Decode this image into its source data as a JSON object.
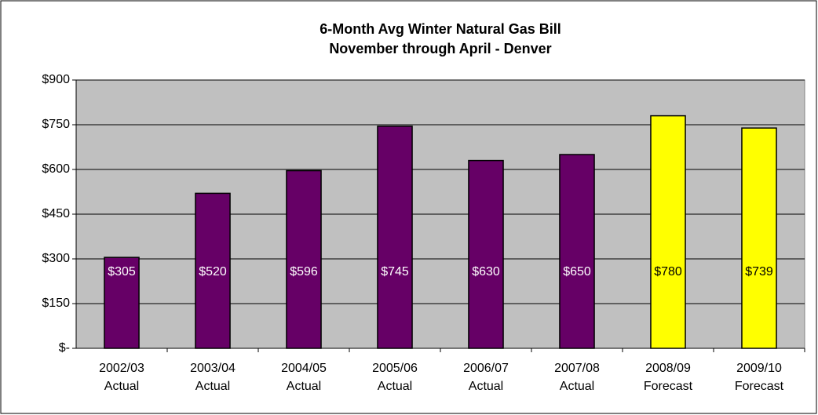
{
  "chart_data": {
    "type": "bar",
    "title": "6-Month Avg Winter Natural Gas Bill",
    "subtitle": "November through April - Denver",
    "categories": [
      [
        "2002/03",
        "Actual"
      ],
      [
        "2003/04",
        "Actual"
      ],
      [
        "2004/05",
        "Actual"
      ],
      [
        "2005/06",
        "Actual"
      ],
      [
        "2006/07",
        "Actual"
      ],
      [
        "2007/08",
        "Actual"
      ],
      [
        "2008/09",
        "Forecast"
      ],
      [
        "2009/10",
        "Forecast"
      ]
    ],
    "values": [
      305,
      520,
      596,
      745,
      630,
      650,
      780,
      739
    ],
    "value_labels": [
      "$305",
      "$520",
      "$596",
      "$745",
      "$630",
      "$650",
      "$780",
      "$739"
    ],
    "colors": [
      "#660066",
      "#660066",
      "#660066",
      "#660066",
      "#660066",
      "#660066",
      "#ffff00",
      "#ffff00"
    ],
    "value_label_colors": [
      "#ffffff",
      "#ffffff",
      "#ffffff",
      "#ffffff",
      "#ffffff",
      "#ffffff",
      "#000000",
      "#000000"
    ],
    "ylim": [
      0,
      900
    ],
    "yticks": [
      {
        "value": 0,
        "label": "$-"
      },
      {
        "value": 150,
        "label": "$150"
      },
      {
        "value": 300,
        "label": "$300"
      },
      {
        "value": 450,
        "label": "$450"
      },
      {
        "value": 600,
        "label": "$600"
      },
      {
        "value": 750,
        "label": "$750"
      },
      {
        "value": 900,
        "label": "$900"
      }
    ],
    "grid": true
  }
}
